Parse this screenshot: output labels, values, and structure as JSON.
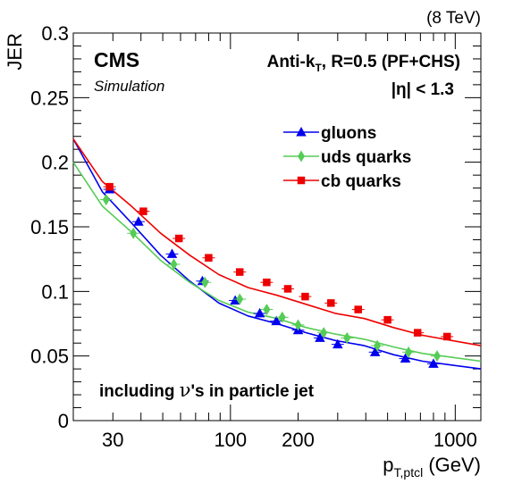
{
  "chart_data": {
    "type": "scatter",
    "corner_label": "(8 TeV)",
    "experiment_label": "CMS",
    "experiment_sublabel": "Simulation",
    "algorithm_label": {
      "prefix": "Anti-k",
      "subscript": "T",
      "suffix": ", R=0.5 (PF+CHS)"
    },
    "eta_label": "|η| < 1.3",
    "annotation": {
      "prefix": "including ",
      "nu": "ν",
      "suffix": "'s in particle jet"
    },
    "ylabel": "JER",
    "xlabel": {
      "main": "p",
      "subscript": "T,ptcl",
      "unit": " (GeV)"
    },
    "x_scale": "log",
    "xlim": [
      20,
      1300
    ],
    "ylim": [
      0,
      0.3
    ],
    "x_tick_labels": [
      {
        "value": 30,
        "label": "30"
      },
      {
        "value": 100,
        "label": "100"
      },
      {
        "value": 200,
        "label": "200"
      },
      {
        "value": 1000,
        "label": "1000"
      }
    ],
    "y_tick_labels": [
      {
        "value": 0,
        "label": "0"
      },
      {
        "value": 0.05,
        "label": "0.05"
      },
      {
        "value": 0.1,
        "label": "0.1"
      },
      {
        "value": 0.15,
        "label": "0.15"
      },
      {
        "value": 0.2,
        "label": "0.2"
      },
      {
        "value": 0.25,
        "label": "0.25"
      },
      {
        "value": 0.3,
        "label": "0.3"
      }
    ],
    "legend_position": "top-right",
    "series": [
      {
        "name": "gluons",
        "color": "#0000ee",
        "marker": "triangle",
        "x": [
          29,
          39,
          55,
          75,
          105,
          135,
          160,
          200,
          250,
          300,
          440,
          600,
          800
        ],
        "y": [
          0.179,
          0.154,
          0.129,
          0.108,
          0.093,
          0.083,
          0.077,
          0.07,
          0.064,
          0.059,
          0.053,
          0.048,
          0.044
        ],
        "fit": [
          0.218,
          0.177,
          0.153,
          0.128,
          0.108,
          0.091,
          0.081,
          0.075,
          0.068,
          0.062,
          0.058,
          0.051,
          0.046,
          0.043,
          0.04
        ]
      },
      {
        "name": "uds quarks",
        "color": "#55cc55",
        "marker": "diamond",
        "x": [
          28,
          37,
          56,
          77,
          110,
          145,
          170,
          200,
          260,
          330,
          450,
          620,
          830
        ],
        "y": [
          0.171,
          0.145,
          0.121,
          0.107,
          0.094,
          0.086,
          0.08,
          0.074,
          0.068,
          0.064,
          0.058,
          0.053,
          0.05
        ],
        "fit": [
          0.2,
          0.166,
          0.146,
          0.124,
          0.107,
          0.093,
          0.084,
          0.079,
          0.072,
          0.067,
          0.063,
          0.057,
          0.052,
          0.049,
          0.046
        ]
      },
      {
        "name": "cb quarks",
        "color": "#ee0000",
        "marker": "square",
        "x": [
          29,
          41,
          59,
          80,
          110,
          145,
          180,
          215,
          280,
          370,
          500,
          680,
          920
        ],
        "y": [
          0.181,
          0.162,
          0.141,
          0.126,
          0.115,
          0.107,
          0.102,
          0.096,
          0.091,
          0.086,
          0.078,
          0.068,
          0.065
        ],
        "fit": [
          0.218,
          0.185,
          0.166,
          0.145,
          0.128,
          0.113,
          0.103,
          0.097,
          0.09,
          0.083,
          0.079,
          0.072,
          0.066,
          0.062,
          0.058
        ]
      }
    ]
  }
}
